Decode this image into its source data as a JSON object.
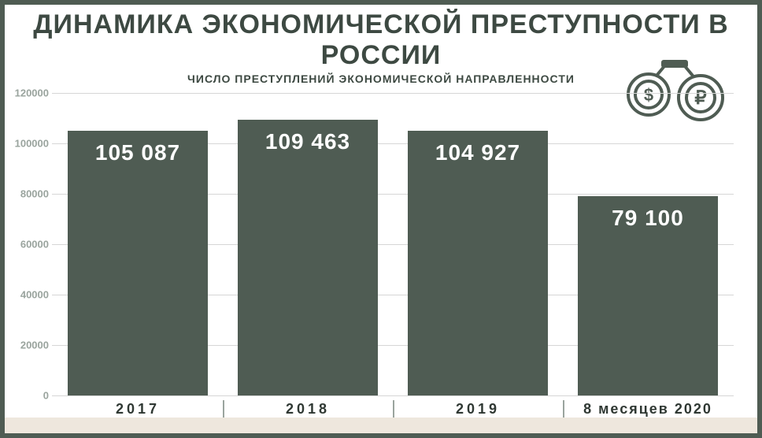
{
  "title": "ДИНАМИКА ЭКОНОМИЧЕСКОЙ ПРЕСТУПНОСТИ В РОССИИ",
  "subtitle": "ЧИСЛО ПРЕСТУПЛЕНИЙ ЭКОНОМИЧЕСКОЙ НАПРАВЛЕННОСТИ",
  "chart": {
    "type": "bar",
    "categories": [
      "2017",
      "2018",
      "2019",
      "8 месяцев 2020"
    ],
    "values": [
      105087,
      109463,
      104927,
      79100
    ],
    "value_labels": [
      "105 087",
      "109 463",
      "104 927",
      "79 100"
    ],
    "bar_color": "#4f5c53",
    "bar_label_color": "#ffffff",
    "bar_label_fontsize": 28,
    "ylim": [
      0,
      120000
    ],
    "ytick_step": 20000,
    "ytick_labels": [
      "0",
      "20000",
      "40000",
      "60000",
      "80000",
      "100000",
      "120000"
    ],
    "ytick_color": "#9aa49e",
    "ytick_fontsize": 13,
    "grid_color": "#d6d6d6",
    "background_color": "#ffffff",
    "xlabel_color": "#2f3833",
    "xlabel_fontsize": 18
  },
  "colors": {
    "frame_border": "#4f5c53",
    "title_color": "#3d4942",
    "bottom_strip": "#eee7dd",
    "icon_stroke": "#4f5c53"
  },
  "typography": {
    "title_fontsize": 34,
    "subtitle_fontsize": 14
  },
  "icon": {
    "name": "handcuffs-currency-icon",
    "left_symbol": "$",
    "right_symbol": "₽"
  }
}
